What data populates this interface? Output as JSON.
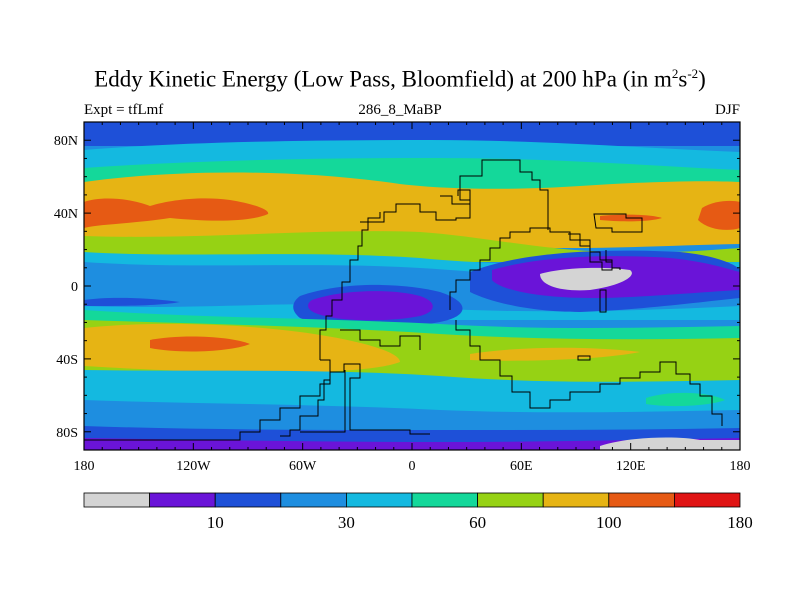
{
  "title": {
    "main": "Eddy Kinetic Energy (Low Pass, Bloomfield) at 200 hPa (in m",
    "sup1": "2",
    "mid": "s",
    "sup2": "-2",
    "end": ")"
  },
  "subtitle_left": "Expt = tfLmf",
  "subtitle_center": "286_8_MaBP",
  "subtitle_right": "DJF",
  "colors": {
    "c0": "#d4d4d4",
    "c1": "#6a14d8",
    "c2": "#1e50d8",
    "c3": "#1e8ee0",
    "c4": "#14b9e0",
    "c5": "#14d89a",
    "c6": "#96d214",
    "c7": "#e6b414",
    "c8": "#e65a14",
    "c9": "#e01414"
  },
  "chart_data": {
    "type": "heatmap",
    "title": "Eddy Kinetic Energy (Low Pass, Bloomfield) at 200 hPa (in m2s-2)",
    "experiment": "tfLmf",
    "case": "286_8_MaBP",
    "season": "DJF",
    "projection": "cylindrical equidistant",
    "x": {
      "range": [
        -180,
        180
      ],
      "ticks": [
        -180,
        -120,
        -60,
        0,
        60,
        120,
        180
      ],
      "tick_labels": [
        "180",
        "120W",
        "60W",
        "0",
        "60E",
        "120E",
        "180"
      ]
    },
    "y": {
      "range": [
        -90,
        90
      ],
      "ticks": [
        80,
        40,
        0,
        -40,
        -80
      ],
      "tick_labels": [
        "80N",
        "40N",
        "0",
        "40S",
        "80S"
      ]
    },
    "colorbar": {
      "levels": [
        5,
        10,
        20,
        30,
        45,
        60,
        80,
        100,
        140,
        180
      ],
      "labels": [
        {
          "value": 10,
          "text": "10"
        },
        {
          "value": 30,
          "text": "30"
        },
        {
          "value": 60,
          "text": "60"
        },
        {
          "value": 100,
          "text": "100"
        },
        {
          "value": 180,
          "text": "180"
        }
      ],
      "colors": [
        "c0",
        "c1",
        "c2",
        "c3",
        "c4",
        "c5",
        "c6",
        "c7",
        "c8",
        "c9"
      ]
    },
    "regions": [
      {
        "color": "c2",
        "lat": 80,
        "lon": 0,
        "note": "polar-north band"
      },
      {
        "color": "c4",
        "lat": 55,
        "lon": -120,
        "note": "N midlatitude outer"
      },
      {
        "color": "c6",
        "lat": 45,
        "lon": 60,
        "note": "N storm track"
      },
      {
        "color": "c7",
        "lat": 40,
        "lon": -160,
        "note": "N jet"
      },
      {
        "color": "c8",
        "lat": 40,
        "lon": -160,
        "note": "N Pacific max"
      },
      {
        "color": "c8",
        "lat": 40,
        "lon": 170,
        "note": "N Pacific max east"
      },
      {
        "color": "c8",
        "lat": 40,
        "lon": 130,
        "note": "small max E Asia"
      },
      {
        "color": "c3",
        "lat": 10,
        "lon": -100,
        "note": "tropics"
      },
      {
        "color": "c1",
        "lat": -10,
        "lon": -30,
        "note": "S America minimum"
      },
      {
        "color": "c1",
        "lat": 5,
        "lon": 100,
        "note": "Asian monsoon minimum"
      },
      {
        "color": "c0",
        "lat": 5,
        "lon": 100,
        "note": "minimum below 5"
      },
      {
        "color": "c7",
        "lat": -35,
        "lon": -140,
        "note": "S jet"
      },
      {
        "color": "c6",
        "lat": -45,
        "lon": 60,
        "note": "S storm track"
      },
      {
        "color": "c0",
        "lat": -88,
        "lon": 130,
        "note": "south pole minimum"
      }
    ]
  }
}
